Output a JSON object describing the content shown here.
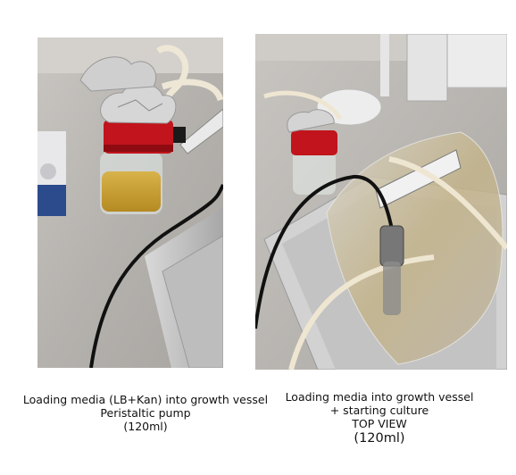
{
  "photos": [
    {
      "caption": [
        "Loading media (LB+Kan) into growth vessel",
        "Peristaltic pump",
        "(120ml)"
      ]
    },
    {
      "caption": [
        "Loading media into growth vessel",
        "+ starting culture",
        "TOP VIEW",
        "(120ml)"
      ]
    }
  ]
}
